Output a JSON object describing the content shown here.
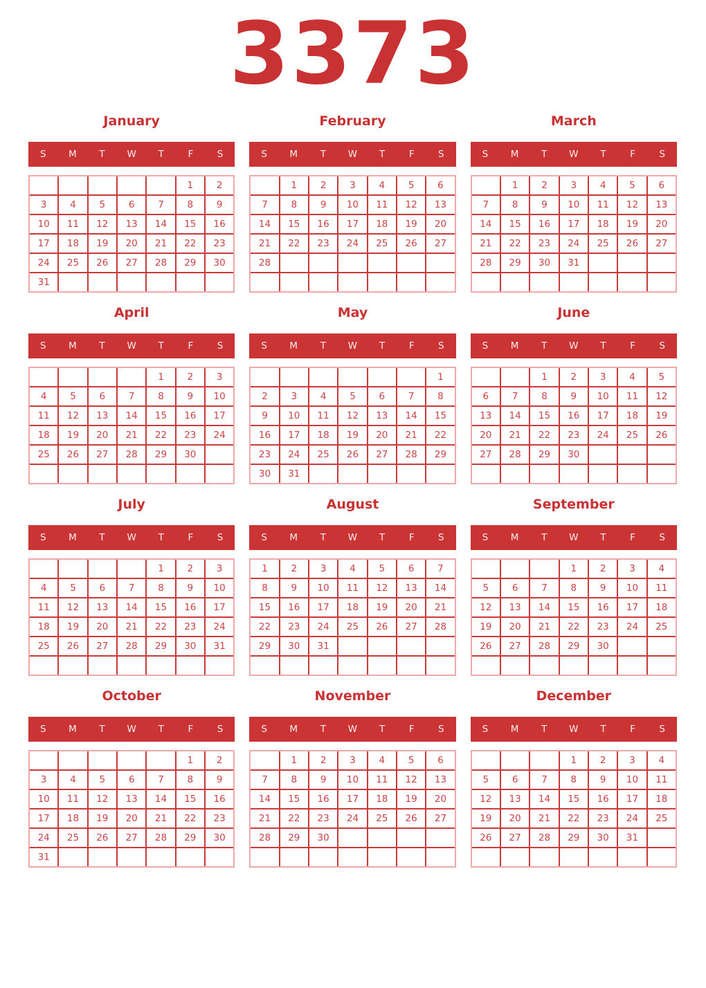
{
  "page": {
    "year": "3373"
  },
  "colors": {
    "accent": "#c93232",
    "weekday_band": "#cb3434",
    "weekday_text": "#f7ecec",
    "day_text": "#cc4343",
    "grid_line": "#cb3a3a",
    "grid_outer_border": "#efa9a9",
    "background": "#ffffff"
  },
  "weekday_headers": [
    "S",
    "M",
    "T",
    "W",
    "T",
    "F",
    "S"
  ],
  "months": [
    {
      "name": "January",
      "weeks": [
        [
          "",
          "",
          "",
          "",
          "",
          "1",
          "2"
        ],
        [
          "3",
          "4",
          "5",
          "6",
          "7",
          "8",
          "9"
        ],
        [
          "10",
          "11",
          "12",
          "13",
          "14",
          "15",
          "16"
        ],
        [
          "17",
          "18",
          "19",
          "20",
          "21",
          "22",
          "23"
        ],
        [
          "24",
          "25",
          "26",
          "27",
          "28",
          "29",
          "30"
        ],
        [
          "31",
          "",
          "",
          "",
          "",
          "",
          ""
        ]
      ]
    },
    {
      "name": "February",
      "weeks": [
        [
          "",
          "1",
          "2",
          "3",
          "4",
          "5",
          "6"
        ],
        [
          "7",
          "8",
          "9",
          "10",
          "11",
          "12",
          "13"
        ],
        [
          "14",
          "15",
          "16",
          "17",
          "18",
          "19",
          "20"
        ],
        [
          "21",
          "22",
          "23",
          "24",
          "25",
          "26",
          "27"
        ],
        [
          "28",
          "",
          "",
          "",
          "",
          "",
          ""
        ],
        [
          "",
          "",
          "",
          "",
          "",
          "",
          ""
        ]
      ]
    },
    {
      "name": "March",
      "weeks": [
        [
          "",
          "1",
          "2",
          "3",
          "4",
          "5",
          "6"
        ],
        [
          "7",
          "8",
          "9",
          "10",
          "11",
          "12",
          "13"
        ],
        [
          "14",
          "15",
          "16",
          "17",
          "18",
          "19",
          "20"
        ],
        [
          "21",
          "22",
          "23",
          "24",
          "25",
          "26",
          "27"
        ],
        [
          "28",
          "29",
          "30",
          "31",
          "",
          "",
          ""
        ],
        [
          "",
          "",
          "",
          "",
          "",
          "",
          ""
        ]
      ]
    },
    {
      "name": "April",
      "weeks": [
        [
          "",
          "",
          "",
          "",
          "1",
          "2",
          "3"
        ],
        [
          "4",
          "5",
          "6",
          "7",
          "8",
          "9",
          "10"
        ],
        [
          "11",
          "12",
          "13",
          "14",
          "15",
          "16",
          "17"
        ],
        [
          "18",
          "19",
          "20",
          "21",
          "22",
          "23",
          "24"
        ],
        [
          "25",
          "26",
          "27",
          "28",
          "29",
          "30",
          ""
        ],
        [
          "",
          "",
          "",
          "",
          "",
          "",
          ""
        ]
      ]
    },
    {
      "name": "May",
      "weeks": [
        [
          "",
          "",
          "",
          "",
          "",
          "",
          "1"
        ],
        [
          "2",
          "3",
          "4",
          "5",
          "6",
          "7",
          "8"
        ],
        [
          "9",
          "10",
          "11",
          "12",
          "13",
          "14",
          "15"
        ],
        [
          "16",
          "17",
          "18",
          "19",
          "20",
          "21",
          "22"
        ],
        [
          "23",
          "24",
          "25",
          "26",
          "27",
          "28",
          "29"
        ],
        [
          "30",
          "31",
          "",
          "",
          "",
          "",
          ""
        ]
      ]
    },
    {
      "name": "June",
      "weeks": [
        [
          "",
          "",
          "1",
          "2",
          "3",
          "4",
          "5"
        ],
        [
          "6",
          "7",
          "8",
          "9",
          "10",
          "11",
          "12"
        ],
        [
          "13",
          "14",
          "15",
          "16",
          "17",
          "18",
          "19"
        ],
        [
          "20",
          "21",
          "22",
          "23",
          "24",
          "25",
          "26"
        ],
        [
          "27",
          "28",
          "29",
          "30",
          "",
          "",
          ""
        ],
        [
          "",
          "",
          "",
          "",
          "",
          "",
          ""
        ]
      ]
    },
    {
      "name": "July",
      "weeks": [
        [
          "",
          "",
          "",
          "",
          "1",
          "2",
          "3"
        ],
        [
          "4",
          "5",
          "6",
          "7",
          "8",
          "9",
          "10"
        ],
        [
          "11",
          "12",
          "13",
          "14",
          "15",
          "16",
          "17"
        ],
        [
          "18",
          "19",
          "20",
          "21",
          "22",
          "23",
          "24"
        ],
        [
          "25",
          "26",
          "27",
          "28",
          "29",
          "30",
          "31"
        ],
        [
          "",
          "",
          "",
          "",
          "",
          "",
          ""
        ]
      ]
    },
    {
      "name": "August",
      "weeks": [
        [
          "1",
          "2",
          "3",
          "4",
          "5",
          "6",
          "7"
        ],
        [
          "8",
          "9",
          "10",
          "11",
          "12",
          "13",
          "14"
        ],
        [
          "15",
          "16",
          "17",
          "18",
          "19",
          "20",
          "21"
        ],
        [
          "22",
          "23",
          "24",
          "25",
          "26",
          "27",
          "28"
        ],
        [
          "29",
          "30",
          "31",
          "",
          "",
          "",
          ""
        ],
        [
          "",
          "",
          "",
          "",
          "",
          "",
          ""
        ]
      ]
    },
    {
      "name": "September",
      "weeks": [
        [
          "",
          "",
          "",
          "1",
          "2",
          "3",
          "4"
        ],
        [
          "5",
          "6",
          "7",
          "8",
          "9",
          "10",
          "11"
        ],
        [
          "12",
          "13",
          "14",
          "15",
          "16",
          "17",
          "18"
        ],
        [
          "19",
          "20",
          "21",
          "22",
          "23",
          "24",
          "25"
        ],
        [
          "26",
          "27",
          "28",
          "29",
          "30",
          "",
          ""
        ],
        [
          "",
          "",
          "",
          "",
          "",
          "",
          ""
        ]
      ]
    },
    {
      "name": "October",
      "weeks": [
        [
          "",
          "",
          "",
          "",
          "",
          "1",
          "2"
        ],
        [
          "3",
          "4",
          "5",
          "6",
          "7",
          "8",
          "9"
        ],
        [
          "10",
          "11",
          "12",
          "13",
          "14",
          "15",
          "16"
        ],
        [
          "17",
          "18",
          "19",
          "20",
          "21",
          "22",
          "23"
        ],
        [
          "24",
          "25",
          "26",
          "27",
          "28",
          "29",
          "30"
        ],
        [
          "31",
          "",
          "",
          "",
          "",
          "",
          ""
        ]
      ]
    },
    {
      "name": "November",
      "weeks": [
        [
          "",
          "1",
          "2",
          "3",
          "4",
          "5",
          "6"
        ],
        [
          "7",
          "8",
          "9",
          "10",
          "11",
          "12",
          "13"
        ],
        [
          "14",
          "15",
          "16",
          "17",
          "18",
          "19",
          "20"
        ],
        [
          "21",
          "22",
          "23",
          "24",
          "25",
          "26",
          "27"
        ],
        [
          "28",
          "29",
          "30",
          "",
          "",
          "",
          ""
        ],
        [
          "",
          "",
          "",
          "",
          "",
          "",
          ""
        ]
      ]
    },
    {
      "name": "December",
      "weeks": [
        [
          "",
          "",
          "",
          "1",
          "2",
          "3",
          "4"
        ],
        [
          "5",
          "6",
          "7",
          "8",
          "9",
          "10",
          "11"
        ],
        [
          "12",
          "13",
          "14",
          "15",
          "16",
          "17",
          "18"
        ],
        [
          "19",
          "20",
          "21",
          "22",
          "23",
          "24",
          "25"
        ],
        [
          "26",
          "27",
          "28",
          "29",
          "30",
          "31",
          ""
        ],
        [
          "",
          "",
          "",
          "",
          "",
          "",
          ""
        ]
      ]
    }
  ]
}
